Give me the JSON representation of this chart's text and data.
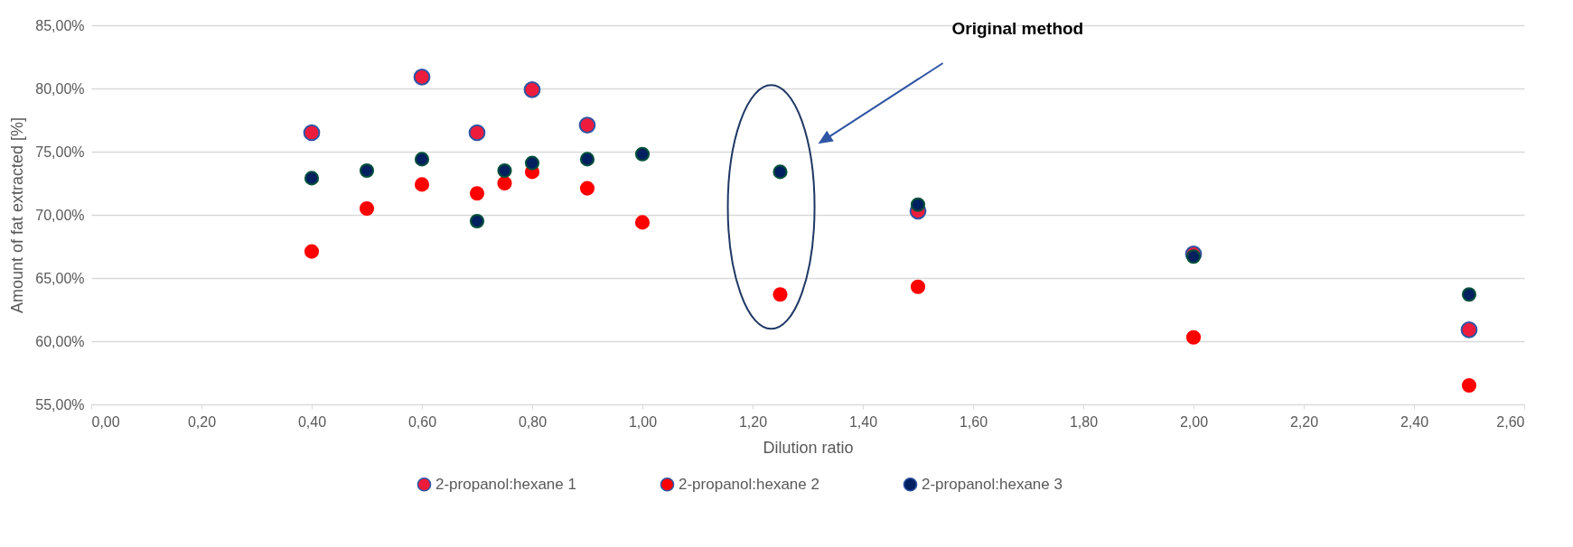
{
  "chart_data": {
    "type": "scatter",
    "xlabel": "Dilution ratio",
    "ylabel": "Amount of fat extracted [%]",
    "xlim": [
      0,
      2.6
    ],
    "xticks": [
      {
        "value": 0,
        "label": "0,00"
      },
      {
        "value": 0.2,
        "label": "0,20"
      },
      {
        "value": 0.4,
        "label": "0,40"
      },
      {
        "value": 0.6,
        "label": "0,60"
      },
      {
        "value": 0.8,
        "label": "0,80"
      },
      {
        "value": 1,
        "label": "1,00"
      },
      {
        "value": 1.2,
        "label": "1,20"
      },
      {
        "value": 1.4,
        "label": "1,40"
      },
      {
        "value": 1.6,
        "label": "1,60"
      },
      {
        "value": 1.8,
        "label": "1,80"
      },
      {
        "value": 2,
        "label": "2,00"
      },
      {
        "value": 2.2,
        "label": "2,20"
      },
      {
        "value": 2.4,
        "label": "2,40"
      },
      {
        "value": 2.6,
        "label": "2,60"
      }
    ],
    "ylim": [
      55,
      85
    ],
    "yticks": [
      {
        "value": 55,
        "label": "55,00%"
      },
      {
        "value": 60,
        "label": "60,00%"
      },
      {
        "value": 65,
        "label": "65,00%"
      },
      {
        "value": 70,
        "label": "70,00%"
      },
      {
        "value": 75,
        "label": "75,00%"
      },
      {
        "value": 80,
        "label": "80,00%"
      },
      {
        "value": 85,
        "label": "85,00%"
      }
    ],
    "grid": "y",
    "legend": "bottom",
    "marker": "circle",
    "annotations": [
      "Original method"
    ],
    "series": [
      {
        "name": "2-propanol:hexane 1",
        "color": "#ee1c3c",
        "x": [
          0.4,
          0.6,
          0.7,
          0.8,
          0.9,
          1.5,
          2.0,
          2.5
        ],
        "values": [
          76.5,
          80.9,
          76.5,
          79.9,
          77.1,
          70.3,
          66.9,
          60.9
        ]
      },
      {
        "name": "2-propanol:hexane 2",
        "color": "#ff0000",
        "x": [
          0.4,
          0.5,
          0.6,
          0.7,
          0.75,
          0.8,
          0.9,
          1.0,
          1.25,
          1.5,
          2.0,
          2.5
        ],
        "values": [
          67.1,
          70.5,
          72.4,
          71.7,
          72.5,
          73.4,
          72.1,
          69.4,
          63.7,
          64.3,
          60.3,
          56.5
        ]
      },
      {
        "name": "2-propanol:hexane 3",
        "color": "#002060",
        "x": [
          0.4,
          0.5,
          0.6,
          0.7,
          0.75,
          0.8,
          0.9,
          1.0,
          1.25,
          1.5,
          2.0,
          2.5
        ],
        "values": [
          72.9,
          73.5,
          74.4,
          69.5,
          73.5,
          74.1,
          74.4,
          74.8,
          73.4,
          70.8,
          66.7,
          63.7
        ]
      }
    ]
  }
}
